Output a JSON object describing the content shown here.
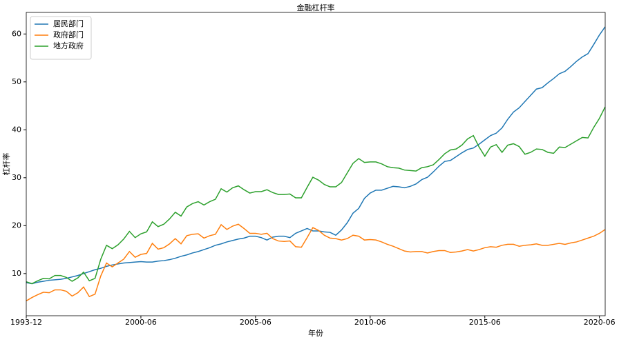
{
  "chart_data": {
    "type": "line",
    "title": "金融杠杆率",
    "x_label": "年份",
    "y_label": "杠杆率",
    "categories": [
      "1993-12",
      null,
      null,
      null,
      null,
      null,
      null,
      null,
      null,
      null,
      null,
      null,
      null,
      null,
      null,
      null,
      null,
      null,
      null,
      null,
      "2000-06",
      null,
      null,
      null,
      null,
      null,
      null,
      null,
      null,
      null,
      null,
      null,
      null,
      null,
      null,
      null,
      null,
      null,
      null,
      null,
      "2005-06",
      null,
      null,
      null,
      null,
      null,
      null,
      null,
      null,
      null,
      null,
      null,
      null,
      null,
      null,
      null,
      null,
      null,
      null,
      null,
      "2010-06",
      null,
      null,
      null,
      null,
      null,
      null,
      null,
      null,
      null,
      null,
      null,
      null,
      null,
      null,
      null,
      null,
      null,
      null,
      null,
      "2015-06",
      null,
      null,
      null,
      null,
      null,
      null,
      null,
      null,
      null,
      null,
      null,
      null,
      null,
      null,
      null,
      null,
      null,
      null,
      null,
      "2020-06",
      null
    ],
    "series": [
      {
        "name": "居民部门",
        "color": "#1f77b4",
        "values": [
          8.1,
          7.9,
          8.2,
          8.4,
          8.6,
          8.7,
          8.8,
          9.0,
          9.3,
          9.6,
          10.0,
          10.4,
          10.8,
          11.1,
          11.5,
          11.8,
          12.0,
          12.2,
          12.3,
          12.4,
          12.5,
          12.4,
          12.4,
          12.6,
          12.7,
          12.9,
          13.2,
          13.6,
          13.9,
          14.3,
          14.6,
          15.0,
          15.4,
          15.9,
          16.2,
          16.6,
          16.9,
          17.2,
          17.4,
          17.8,
          17.8,
          17.5,
          17.0,
          17.6,
          17.8,
          17.8,
          17.5,
          18.4,
          18.9,
          19.4,
          18.9,
          18.9,
          18.7,
          18.6,
          18.0,
          19.1,
          20.6,
          22.6,
          23.6,
          25.7,
          26.8,
          27.4,
          27.4,
          27.8,
          28.2,
          28.1,
          27.9,
          28.2,
          28.7,
          29.6,
          30.1,
          31.2,
          32.4,
          33.4,
          33.6,
          34.4,
          35.2,
          35.9,
          36.2,
          37.0,
          37.9,
          38.8,
          39.3,
          40.4,
          42.2,
          43.7,
          44.6,
          45.9,
          47.2,
          48.5,
          48.8,
          49.8,
          50.7,
          51.7,
          52.2,
          53.2,
          54.3,
          55.2,
          55.9,
          57.8,
          59.8,
          61.5
        ]
      },
      {
        "name": "政府部门",
        "color": "#ff7f0e",
        "values": [
          4.3,
          5.0,
          5.6,
          6.1,
          6.0,
          6.6,
          6.6,
          6.3,
          5.3,
          6.0,
          7.2,
          5.2,
          5.7,
          9.5,
          12.2,
          11.4,
          12.2,
          13.0,
          14.6,
          13.4,
          14.0,
          14.2,
          16.3,
          15.1,
          15.4,
          16.2,
          17.3,
          16.2,
          17.9,
          18.2,
          18.3,
          17.4,
          17.9,
          18.2,
          20.2,
          19.2,
          19.9,
          20.3,
          19.4,
          18.4,
          18.4,
          18.2,
          18.4,
          17.3,
          16.8,
          16.7,
          16.8,
          15.6,
          15.5,
          17.5,
          19.6,
          19.0,
          18.0,
          17.4,
          17.3,
          17.0,
          17.3,
          18.0,
          17.8,
          17.0,
          17.1,
          17.0,
          16.6,
          16.1,
          15.7,
          15.2,
          14.7,
          14.5,
          14.6,
          14.6,
          14.3,
          14.6,
          14.8,
          14.8,
          14.4,
          14.5,
          14.7,
          15.0,
          14.7,
          15.0,
          15.4,
          15.6,
          15.5,
          15.9,
          16.1,
          16.1,
          15.7,
          15.9,
          16.0,
          16.2,
          15.9,
          15.9,
          16.1,
          16.3,
          16.1,
          16.4,
          16.6,
          17.0,
          17.4,
          17.8,
          18.4,
          19.2
        ]
      },
      {
        "name": "地方政府",
        "color": "#2ca02c",
        "values": [
          8.3,
          7.9,
          8.5,
          9.0,
          8.9,
          9.6,
          9.6,
          9.2,
          8.4,
          9.1,
          10.3,
          8.5,
          9.0,
          13.0,
          15.9,
          15.2,
          16.0,
          17.2,
          18.8,
          17.5,
          18.3,
          18.7,
          20.8,
          19.8,
          20.3,
          21.4,
          22.8,
          22.0,
          23.9,
          24.6,
          25.0,
          24.3,
          25.0,
          25.5,
          27.7,
          27.0,
          27.9,
          28.3,
          27.5,
          26.8,
          27.1,
          27.1,
          27.5,
          26.9,
          26.5,
          26.5,
          26.6,
          25.8,
          25.8,
          28.0,
          30.1,
          29.5,
          28.6,
          28.1,
          28.1,
          29.0,
          31.0,
          33.0,
          34.0,
          33.2,
          33.3,
          33.3,
          32.9,
          32.3,
          32.1,
          32.0,
          31.6,
          31.5,
          31.4,
          32.1,
          32.3,
          32.7,
          33.8,
          35.0,
          35.8,
          36.0,
          36.8,
          38.1,
          38.8,
          36.4,
          34.5,
          36.4,
          36.9,
          35.3,
          36.8,
          37.1,
          36.5,
          34.9,
          35.3,
          36.0,
          35.9,
          35.3,
          35.1,
          36.4,
          36.3,
          37.0,
          37.7,
          38.4,
          38.3,
          40.5,
          42.4,
          44.8
        ]
      }
    ],
    "ylim": [
      1.2,
      64.5
    ],
    "yticks": [
      10,
      20,
      30,
      40,
      50,
      60
    ],
    "grid": false,
    "legend": "upper-left"
  }
}
